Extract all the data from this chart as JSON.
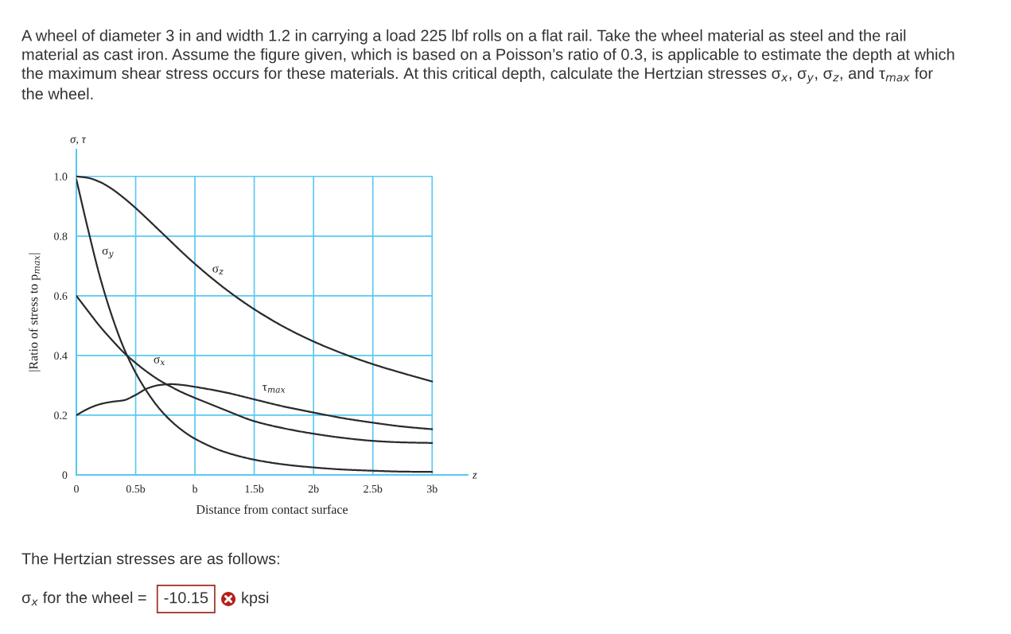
{
  "chart_data": {
    "type": "line",
    "title": "A wheel of diameter 3 in and width 1.2 in carrying a load 225 lbf rolls on a flat rail. Take the wheel material as steel and the rail material as cast iron. Assume the figure given, which is based on a Poisson’s ratio of 0.3, is applicable to estimate the depth at which the maximum shear stress occurs for these materials. At this critical depth, calculate the Hertzian stresses σ$_{x}$, σ$_{y}$, σ$_{z}$, and τ$_{max}$ for the wheel.",
    "xlabel": "Distance from contact surface",
    "ylabel": "|Ratio of stress to p$_{max}$|",
    "annotations": [
      "σ, τ",
      "z",
      "The Hertzian stresses are as follows:",
      "σ$_{x}$ for the wheel =",
      "-10.15",
      "kpsi"
    ],
    "x": [
      0,
      0.1,
      0.2,
      0.3,
      0.4,
      0.5,
      0.6,
      0.7,
      0.8,
      0.9,
      1.0,
      1.25,
      1.5,
      1.75,
      2.0,
      2.25,
      2.5,
      2.75,
      3.0
    ],
    "xlim": [
      0,
      3.3
    ],
    "xticks": [
      0,
      {
        "value": 0.5,
        "label": "0.5b"
      },
      {
        "value": 1,
        "label": "b"
      },
      {
        "value": 1.5,
        "label": "1.5b"
      },
      {
        "value": 2,
        "label": "2b"
      },
      {
        "value": 2.5,
        "label": "2.5b"
      },
      {
        "value": 3,
        "label": "3b"
      }
    ],
    "ylim": [
      0,
      1.09
    ],
    "yticks": [
      0,
      0.2,
      0.4,
      0.6,
      0.8,
      {
        "value": 1,
        "label": "1.0"
      }
    ],
    "grid": true,
    "legend": false,
    "series": [
      {
        "name": "σ$_{z}$",
        "color": "#2b2b2b",
        "values": [
          1.0,
          0.995,
          0.981,
          0.958,
          0.928,
          0.894,
          0.857,
          0.819,
          0.781,
          0.743,
          0.707,
          0.625,
          0.555,
          0.496,
          0.447,
          0.406,
          0.371,
          0.341,
          0.313
        ]
      },
      {
        "name": "σ$_{y}$",
        "color": "#2b2b2b",
        "values": [
          0.99,
          0.82,
          0.662,
          0.532,
          0.425,
          0.342,
          0.276,
          0.222,
          0.18,
          0.147,
          0.121,
          0.077,
          0.051,
          0.035,
          0.025,
          0.018,
          0.014,
          0.011,
          0.01
        ]
      },
      {
        "name": "σ$_{x}$",
        "color": "#2b2b2b",
        "values": [
          0.6,
          0.548,
          0.497,
          0.452,
          0.41,
          0.375,
          0.344,
          0.317,
          0.295,
          0.275,
          0.258,
          0.218,
          0.18,
          0.156,
          0.138,
          0.124,
          0.114,
          0.109,
          0.107
        ]
      },
      {
        "name": "τ$_{max}$",
        "color": "#2b2b2b",
        "values": [
          0.2,
          0.222,
          0.237,
          0.245,
          0.25,
          0.268,
          0.29,
          0.301,
          0.304,
          0.301,
          0.295,
          0.277,
          0.253,
          0.229,
          0.209,
          0.19,
          0.175,
          0.162,
          0.153
        ]
      }
    ]
  }
}
